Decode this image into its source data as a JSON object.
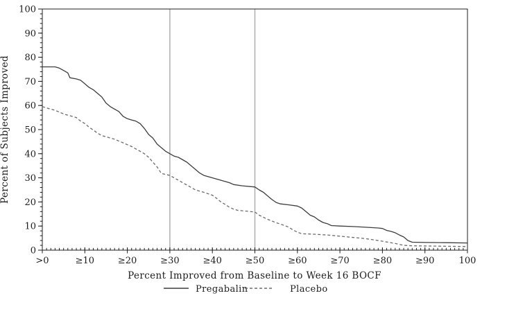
{
  "chart_data": {
    "type": "line",
    "title": "",
    "xlabel": "Percent Improved from Baseline to Week 16 BOCF",
    "ylabel": "Percent of Subjects Improved",
    "xlim": [
      0,
      100
    ],
    "ylim": [
      0,
      100
    ],
    "grid": "off",
    "legend_position": "bottom",
    "axes": {
      "x_tick_values": [
        0,
        10,
        20,
        30,
        40,
        50,
        60,
        70,
        80,
        90,
        100
      ],
      "x_tick_labels": [
        ">0",
        "≥10",
        "≥20",
        "≥30",
        "≥40",
        "≥50",
        "≥60",
        "≥70",
        "≥80",
        "≥90",
        "100"
      ],
      "y_tick_values": [
        0,
        10,
        20,
        30,
        40,
        50,
        60,
        70,
        80,
        90,
        100
      ],
      "y_tick_labels": [
        "0",
        "10",
        "20",
        "30",
        "40",
        "50",
        "60",
        "70",
        "80",
        "90",
        "100"
      ],
      "x_minor_step": 1,
      "y_minor_step": 2
    },
    "reference_lines_x": [
      30,
      50
    ],
    "series": [
      {
        "name": "Pregabalin",
        "style": "solid",
        "color": "#3c3c3c",
        "points": [
          [
            0,
            76
          ],
          [
            3,
            76
          ],
          [
            4,
            75.5
          ],
          [
            5,
            74.5
          ],
          [
            6,
            73.5
          ],
          [
            6.5,
            71.5
          ],
          [
            8,
            71
          ],
          [
            9,
            70.5
          ],
          [
            10,
            69
          ],
          [
            11,
            67.5
          ],
          [
            12,
            66.5
          ],
          [
            13,
            65
          ],
          [
            14,
            63.5
          ],
          [
            15,
            61
          ],
          [
            16,
            59.5
          ],
          [
            17,
            58.5
          ],
          [
            18,
            57.5
          ],
          [
            19,
            55.5
          ],
          [
            20,
            54.5
          ],
          [
            21,
            54
          ],
          [
            22,
            53.5
          ],
          [
            23,
            52.5
          ],
          [
            24,
            50.5
          ],
          [
            25,
            48
          ],
          [
            26,
            46.5
          ],
          [
            27,
            44
          ],
          [
            28,
            42.5
          ],
          [
            29,
            41
          ],
          [
            30,
            40
          ],
          [
            31,
            39
          ],
          [
            32,
            38.5
          ],
          [
            33,
            37.5
          ],
          [
            34,
            36.5
          ],
          [
            35,
            35
          ],
          [
            36,
            33.5
          ],
          [
            37,
            32
          ],
          [
            38,
            31
          ],
          [
            39,
            30.5
          ],
          [
            40,
            30
          ],
          [
            42,
            29
          ],
          [
            44,
            28
          ],
          [
            45,
            27.2
          ],
          [
            47,
            26.7
          ],
          [
            50,
            26.2
          ],
          [
            51,
            25
          ],
          [
            52,
            24
          ],
          [
            53,
            22.5
          ],
          [
            54,
            21
          ],
          [
            55,
            19.8
          ],
          [
            56,
            19.2
          ],
          [
            58,
            18.8
          ],
          [
            60,
            18.3
          ],
          [
            61,
            17.5
          ],
          [
            62,
            16
          ],
          [
            63,
            14.5
          ],
          [
            64,
            13.8
          ],
          [
            65,
            12.5
          ],
          [
            66,
            11.5
          ],
          [
            67,
            11
          ],
          [
            68,
            10.2
          ],
          [
            70,
            10
          ],
          [
            73,
            9.8
          ],
          [
            76,
            9.5
          ],
          [
            79,
            9.2
          ],
          [
            80,
            9
          ],
          [
            81,
            8.2
          ],
          [
            82,
            7.8
          ],
          [
            83,
            7.2
          ],
          [
            84,
            6.3
          ],
          [
            85,
            5.5
          ],
          [
            86,
            4
          ],
          [
            87,
            3.3
          ],
          [
            90,
            3.2
          ],
          [
            95,
            3.1
          ],
          [
            100,
            3
          ]
        ]
      },
      {
        "name": "Placebo",
        "style": "dashed",
        "color": "#6a6a6a",
        "points": [
          [
            0,
            59.5
          ],
          [
            1,
            59
          ],
          [
            3,
            58
          ],
          [
            5,
            56.5
          ],
          [
            7,
            55.5
          ],
          [
            8,
            55
          ],
          [
            9,
            53.5
          ],
          [
            10,
            52.5
          ],
          [
            11,
            51
          ],
          [
            12,
            49.8
          ],
          [
            13,
            48.5
          ],
          [
            14,
            47.5
          ],
          [
            15,
            47
          ],
          [
            17,
            46
          ],
          [
            19,
            44.5
          ],
          [
            21,
            43
          ],
          [
            23,
            41
          ],
          [
            24,
            40
          ],
          [
            25,
            38.5
          ],
          [
            26,
            36.5
          ],
          [
            27,
            34.5
          ],
          [
            28,
            31.8
          ],
          [
            30,
            31
          ],
          [
            31,
            30
          ],
          [
            32,
            29
          ],
          [
            33,
            28
          ],
          [
            34,
            27
          ],
          [
            35,
            26
          ],
          [
            36,
            25
          ],
          [
            38,
            24
          ],
          [
            40,
            22.8
          ],
          [
            41,
            21.5
          ],
          [
            42,
            20
          ],
          [
            43,
            19
          ],
          [
            44,
            17.8
          ],
          [
            45,
            17
          ],
          [
            46,
            16.5
          ],
          [
            48,
            16.2
          ],
          [
            50,
            15.8
          ],
          [
            51,
            14.5
          ],
          [
            53,
            12.8
          ],
          [
            55,
            11.4
          ],
          [
            57,
            10.2
          ],
          [
            58,
            9.5
          ],
          [
            59,
            8.3
          ],
          [
            60,
            7.5
          ],
          [
            61,
            6.8
          ],
          [
            64,
            6.6
          ],
          [
            67,
            6.3
          ],
          [
            70,
            5.8
          ],
          [
            73,
            5.3
          ],
          [
            76,
            4.8
          ],
          [
            79,
            4
          ],
          [
            80,
            3.7
          ],
          [
            81,
            3.4
          ],
          [
            83,
            2.8
          ],
          [
            85,
            2
          ],
          [
            87,
            1.8
          ],
          [
            92,
            1.7
          ],
          [
            100,
            1.5
          ]
        ]
      }
    ],
    "colors": {
      "frame": "#1c1c1c",
      "tick": "#1c1c1c",
      "reference_line": "#b0b0b0",
      "background": "#ffffff"
    }
  },
  "legend": {
    "items": [
      {
        "label": "Pregabalin",
        "swatch": "solid-line"
      },
      {
        "label": "Placebo",
        "swatch": "dashed-line"
      }
    ]
  }
}
